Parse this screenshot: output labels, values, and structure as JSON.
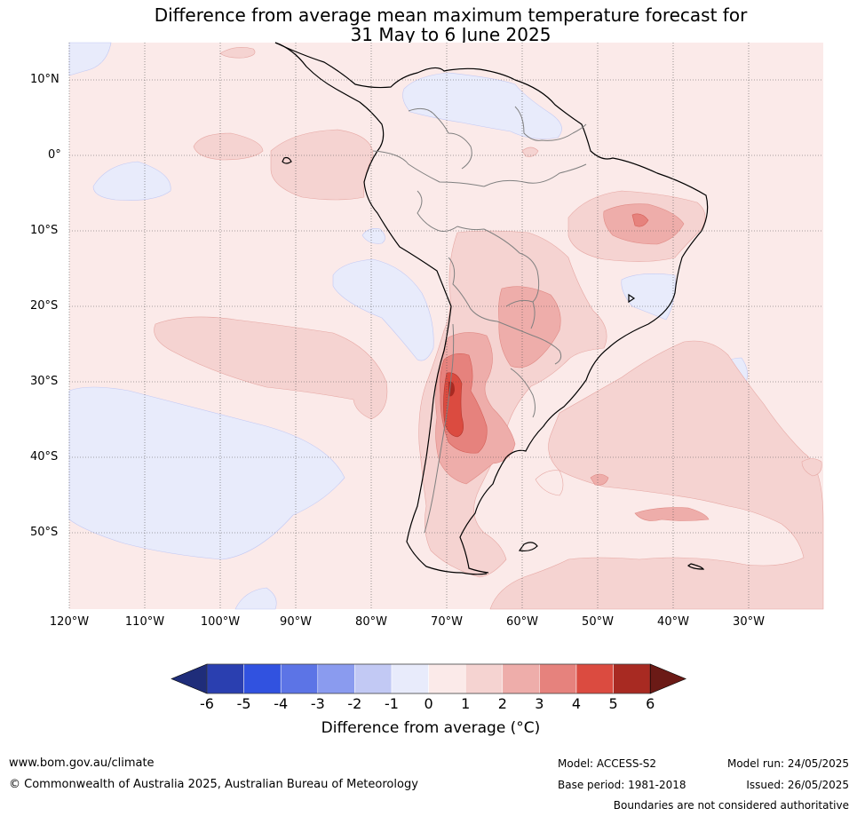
{
  "title": {
    "line1": "Difference from average mean maximum temperature forecast for",
    "line2": "31 May to 6 June 2025"
  },
  "map": {
    "lat_labels": [
      "10°N",
      "0°",
      "10°S",
      "20°S",
      "30°S",
      "40°S",
      "50°S"
    ],
    "lon_labels": [
      "120°W",
      "110°W",
      "100°W",
      "90°W",
      "80°W",
      "70°W",
      "60°W",
      "50°W",
      "40°W",
      "30°W"
    ]
  },
  "colorbar": {
    "ticks": [
      "-6",
      "-5",
      "-4",
      "-3",
      "-2",
      "-1",
      "0",
      "1",
      "2",
      "3",
      "4",
      "5",
      "6"
    ],
    "colors": [
      "#1f2d7a",
      "#2a3fb0",
      "#3152e0",
      "#5c74e6",
      "#8a9bef",
      "#c2c9f4",
      "#e8ebfb",
      "#fbeae9",
      "#f5d3d1",
      "#eeadaa",
      "#e6827d",
      "#db4b40",
      "#a82a22",
      "#6b1a16"
    ],
    "label": "Difference from average (°C)"
  },
  "footer": {
    "website": "www.bom.gov.au/climate",
    "copyright": "© Commonwealth of Australia 2025, Australian Bureau of Meteorology",
    "model": "Model: ACCESS-S2",
    "base_period": "Base period: 1981-2018",
    "model_run": "Model run: 24/05/2025",
    "issued": "Issued: 26/05/2025",
    "disclaimer": "Boundaries are not considered authoritative"
  }
}
